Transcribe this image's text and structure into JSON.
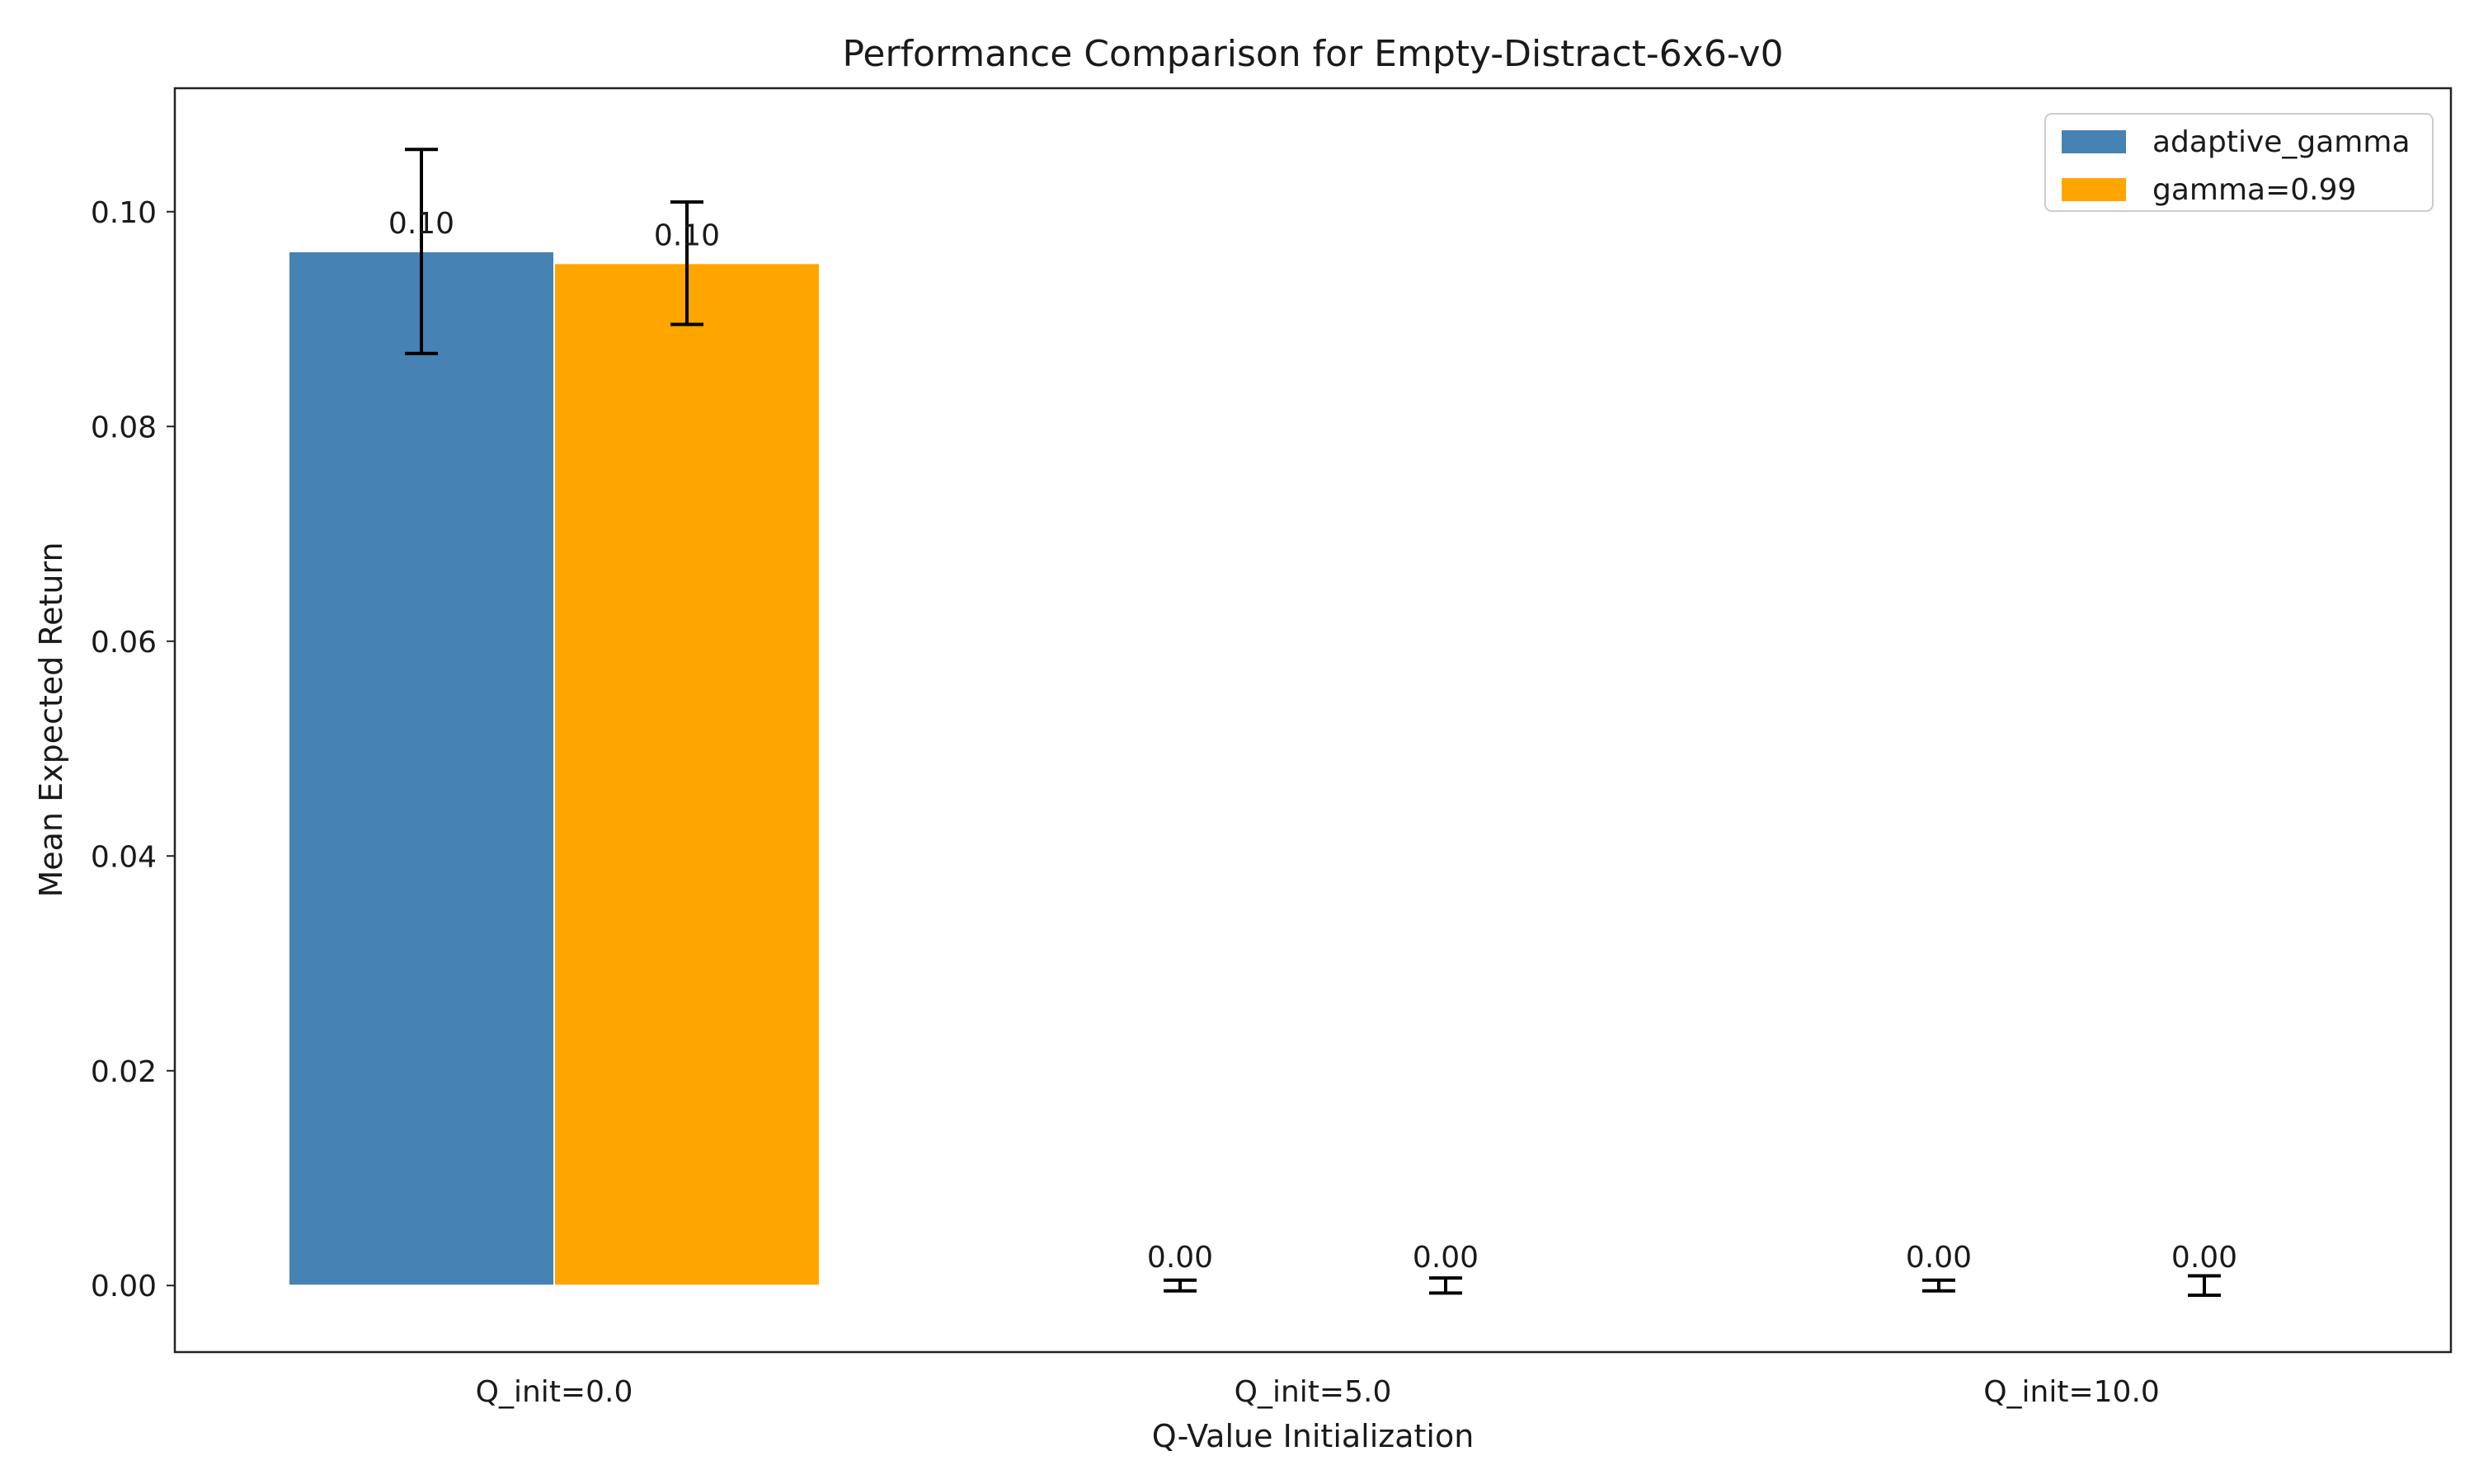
{
  "chart_data": {
    "type": "bar",
    "title": "Performance Comparison for Empty-Distract-6x6-v0",
    "xlabel": "Q-Value Initialization",
    "ylabel": "Mean Expected Return",
    "categories": [
      "Q_init=0.0",
      "Q_init=5.0",
      "Q_init=10.0"
    ],
    "ylim": [
      -0.0062,
      0.1115
    ],
    "yticks": [
      0.0,
      0.02,
      0.04,
      0.06,
      0.08,
      0.1
    ],
    "ytick_labels": [
      "0.00",
      "0.02",
      "0.04",
      "0.06",
      "0.08",
      "0.10"
    ],
    "grid": false,
    "legend_position": "top-right",
    "series": [
      {
        "name": "adaptive_gamma",
        "color": "#4682b4",
        "values": [
          0.0963,
          0.0,
          0.0
        ],
        "errors": [
          0.0095,
          0.0005,
          0.0005
        ],
        "value_labels": [
          "0.10",
          "0.00",
          "0.00"
        ]
      },
      {
        "name": "gamma=0.99",
        "color": "#ffa500",
        "values": [
          0.0952,
          0.0,
          0.0
        ],
        "errors": [
          0.0057,
          0.0007,
          0.0009
        ],
        "value_labels": [
          "0.10",
          "0.00",
          "0.00"
        ]
      }
    ]
  }
}
